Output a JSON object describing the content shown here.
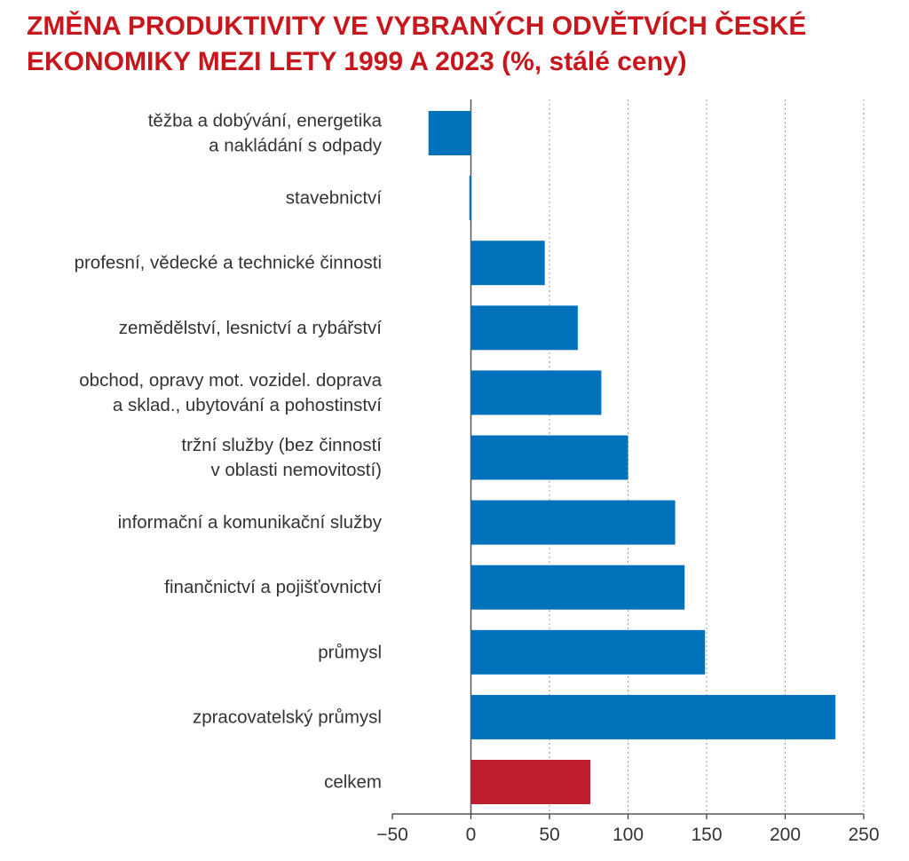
{
  "title_lines": [
    "ZMĚNA PRODUKTIVITY VE VYBRANÝCH ODVĚTVÍCH ČESKÉ",
    "EKONOMIKY MEZI LETY 1999 A 2023 (%, stálé ceny)"
  ],
  "colors": {
    "title": "#c8161d",
    "bar": "#0072bc",
    "total_bar": "#be1e2d",
    "grid": "#999999",
    "text": "#333333"
  },
  "chart_data": {
    "type": "bar",
    "orientation": "horizontal",
    "title": "ZMĚNA PRODUKTIVITY VE VYBRANÝCH ODVĚTVÍCH ČESKÉ EKONOMIKY MEZI LETY 1999 A 2023 (%, stálé ceny)",
    "xlabel": "",
    "ylabel": "",
    "xlim": [
      -50,
      250
    ],
    "xticks": [
      -50,
      0,
      50,
      100,
      150,
      200,
      250
    ],
    "xtick_labels": [
      "−50",
      "0",
      "50",
      "100",
      "150",
      "200",
      "250"
    ],
    "grid": true,
    "categories": [
      [
        "těžba a dobývání, energetika",
        "a nakládání s odpady"
      ],
      [
        "stavebnictví"
      ],
      [
        "profesní, vědecké a technické činnosti"
      ],
      [
        "zemědělství, lesnictví a rybářství"
      ],
      [
        "obchod, opravy mot. vozidel. doprava",
        "a sklad., ubytování a pohostinství"
      ],
      [
        "tržní služby (bez činností",
        "v oblasti nemovitostí)"
      ],
      [
        "informační a komunikační služby"
      ],
      [
        "finančnictví a pojišťovnictví"
      ],
      [
        "průmysl"
      ],
      [
        "zpracovatelský průmysl"
      ],
      [
        "celkem"
      ]
    ],
    "values": [
      -27,
      -1,
      47,
      68,
      83,
      100,
      130,
      136,
      149,
      232,
      76
    ],
    "highlight_index": 10
  }
}
